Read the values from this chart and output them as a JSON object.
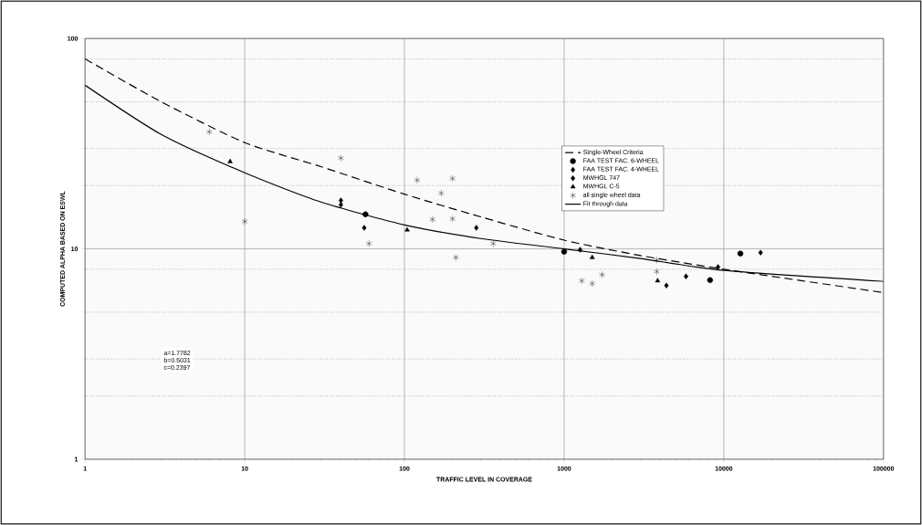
{
  "chart_data": {
    "type": "scatter",
    "xlabel": "TRAFFIC LEVEL IN COVERAGE",
    "ylabel": "COMPUTED ALPHA BASED ON ESWL",
    "log": "xy",
    "xlim": [
      1,
      100000
    ],
    "ylim": [
      1,
      100
    ],
    "xticks": [
      1,
      10,
      100,
      1000,
      10000,
      100000
    ],
    "yticks": [
      1,
      10,
      100
    ],
    "grid": true,
    "legend": "top right",
    "annotations": [
      "a=1.7782",
      "b=0.5031",
      "c=0.2397"
    ],
    "series": [
      {
        "name": "Single-Wheel Criteria",
        "type": "line",
        "line_style": "dashed",
        "marker": "none",
        "color": "#000000",
        "x": [
          1,
          3,
          10,
          30,
          100,
          300,
          1000,
          3000,
          10000,
          100000
        ],
        "values": [
          80,
          50,
          32,
          24.6,
          18.2,
          14.2,
          11.0,
          9.3,
          8.0,
          6.2
        ]
      },
      {
        "name": "FAA TEST FAC. 6-WHEEL",
        "marker": "circle",
        "color": "#000000",
        "x": [
          57,
          1000,
          8200,
          12700
        ],
        "values": [
          14.6,
          9.7,
          7.1,
          9.5
        ]
      },
      {
        "name": "FAA TEST FAC. 4-WHEEL",
        "marker": "diamond",
        "color": "#000000",
        "x": [
          1260,
          4370,
          5800,
          9200,
          17000
        ],
        "values": [
          9.9,
          6.7,
          7.4,
          8.2,
          9.6
        ]
      },
      {
        "name": "MWHGL 747",
        "marker": "diamond",
        "color": "#000000",
        "x": [
          40,
          40,
          56,
          282
        ],
        "values": [
          17,
          16.2,
          12.6,
          12.6
        ]
      },
      {
        "name": "MWHGL C-5",
        "marker": "triangle",
        "color": "#000000",
        "x": [
          8.1,
          104,
          1500,
          3850
        ],
        "values": [
          26,
          12.3,
          9.1,
          7.05
        ]
      },
      {
        "name": "all single wheel data",
        "marker": "cross",
        "color": "#000000",
        "x": [
          6,
          10,
          40,
          60,
          120,
          150,
          170,
          200,
          200,
          210,
          360,
          1290,
          1500,
          1730,
          3800,
          3800
        ],
        "values": [
          36,
          13.5,
          27,
          10.6,
          21.2,
          13.8,
          18.4,
          21.6,
          13.9,
          9.1,
          10.6,
          7.05,
          6.84,
          7.54,
          8.86,
          7.8
        ]
      },
      {
        "name": "Fit through data",
        "type": "line",
        "line_style": "solid",
        "marker": "none",
        "color": "#000000",
        "x": [
          1,
          3,
          10,
          30,
          100,
          300,
          1000,
          3000,
          10000,
          100000
        ],
        "values": [
          60,
          35,
          23,
          16.7,
          13,
          11.2,
          10,
          9.0,
          7.9,
          7.0
        ]
      }
    ]
  }
}
